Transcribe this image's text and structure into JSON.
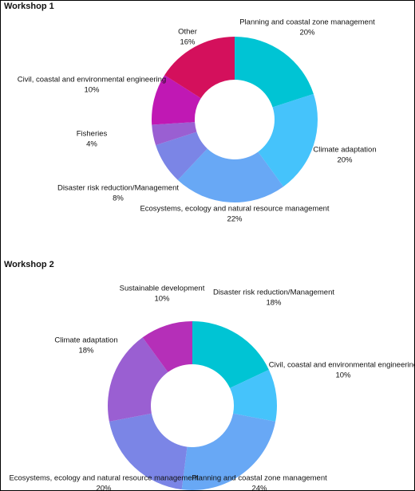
{
  "chart_data": [
    {
      "type": "donut",
      "title": "Workshop 1",
      "categories": [
        "Planning and coastal zone management",
        "Climate adaptation",
        "Ecosystems, ecology and natural resource management",
        "Disaster risk reduction/Management",
        "Fisheries",
        "Civil, coastal and environmental engineering",
        "Other"
      ],
      "values": [
        20,
        20,
        22,
        8,
        4,
        10,
        16
      ],
      "value_labels": [
        "20%",
        "20%",
        "22%",
        "8%",
        "4%",
        "10%",
        "16%"
      ],
      "colors": [
        "#00c4d4",
        "#45c3fb",
        "#68a8f5",
        "#7b85e6",
        "#9a5fd2",
        "#c018b4",
        "#d4105c"
      ]
    },
    {
      "type": "donut",
      "title": "Workshop 2",
      "categories": [
        "Disaster risk reduction/Management",
        "Civil, coastal and environmental engineering",
        "Planning and coastal zone management",
        "Ecosystems, ecology and natural resource management",
        "Climate adaptation",
        "Sustainable development"
      ],
      "values": [
        18,
        10,
        24,
        20,
        18,
        10
      ],
      "value_labels": [
        "18%",
        "10%",
        "24%",
        "20%",
        "18%",
        "10%"
      ],
      "colors": [
        "#00c4d4",
        "#45c3fb",
        "#68a8f5",
        "#7b85e6",
        "#9a5fd2",
        "#b52fb8"
      ]
    }
  ]
}
